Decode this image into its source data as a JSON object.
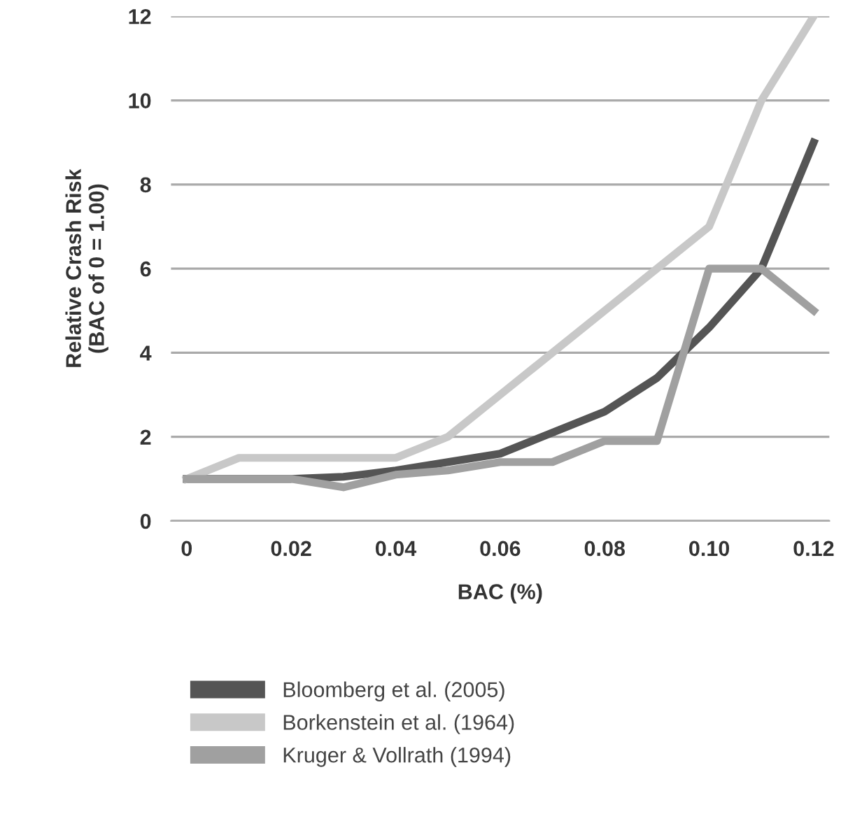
{
  "chart_data": {
    "type": "line",
    "xlabel": "BAC (%)",
    "ylabel": "Relative Crash Risk\n(BAC of 0 = 1.00)",
    "x": [
      0,
      0.01,
      0.02,
      0.03,
      0.04,
      0.05,
      0.06,
      0.07,
      0.08,
      0.09,
      0.1,
      0.11,
      0.12
    ],
    "series": [
      {
        "name": "Bloomberg et al. (2005)",
        "color": "#555555",
        "values": [
          1,
          1,
          1,
          1.05,
          1.2,
          1.4,
          1.6,
          2.1,
          2.6,
          3.4,
          4.6,
          6,
          9
        ]
      },
      {
        "name": "Borkenstein et al. (1964)",
        "color": "#c8c8c8",
        "values": [
          1,
          1.5,
          1.5,
          1.5,
          1.5,
          2,
          3,
          4,
          5,
          6,
          7,
          10,
          12
        ]
      },
      {
        "name": "Kruger & Vollrath (1994)",
        "color": "#a0a0a0",
        "values": [
          1,
          1,
          1,
          0.8,
          1.1,
          1.2,
          1.4,
          1.4,
          1.9,
          1.9,
          6,
          6,
          5
        ]
      }
    ],
    "xlim": [
      -0.003,
      0.123
    ],
    "ylim": [
      0,
      12
    ],
    "xticks": [
      0,
      0.02,
      0.04,
      0.06,
      0.08,
      {
        "value": 0.1,
        "label": "0.10"
      },
      0.12
    ],
    "yticks": [
      0,
      2,
      4,
      6,
      8,
      10,
      12
    ],
    "grid": "y",
    "legend": "bottom",
    "marker": "none",
    "line_style": "solid"
  }
}
